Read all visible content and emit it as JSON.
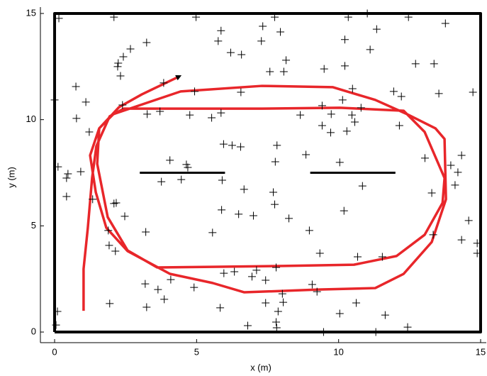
{
  "chart_data": {
    "type": "scatter",
    "xlabel": "x (m)",
    "ylabel": "y (m)",
    "xlim": [
      -0.5,
      15.2
    ],
    "ylim": [
      -0.5,
      15.3
    ],
    "xticks": [
      0,
      5,
      10,
      15
    ],
    "yticks": [
      0,
      5,
      10,
      15
    ],
    "series": [
      {
        "type": "scatter",
        "marker": "+",
        "color": "#000000",
        "x": [
          0.15,
          2.09,
          4.98,
          7.75,
          10.34,
          11.01,
          12.46,
          13.76,
          5.86,
          7.33,
          7.95,
          11.34,
          3.24,
          2.67,
          2.42,
          2.24,
          2.22,
          2.32,
          5.76,
          6.2,
          6.58,
          7.28,
          8.15,
          8.07,
          7.58,
          10.22,
          11.11,
          12.71,
          13.36,
          9.49,
          10.22,
          0.75,
          0.0,
          1.1,
          0.77,
          1.22,
          3.84,
          4.93,
          6.56,
          10.49,
          11.94,
          12.21,
          13.53,
          14.73,
          2.39,
          3.26,
          3.71,
          4.76,
          5.53,
          5.86,
          8.65,
          9.42,
          9.74,
          10.14,
          10.47,
          10.79,
          10.57,
          9.42,
          9.72,
          10.29,
          12.14,
          5.95,
          6.25,
          6.55,
          7.83,
          8.85,
          13.04,
          14.33,
          13.95,
          14.2,
          14.1,
          14.58,
          14.88,
          14.88,
          0.12,
          0.47,
          0.42,
          0.42,
          0.92,
          4.06,
          4.69,
          4.64,
          4.46,
          3.76,
          7.77,
          10.04,
          5.9,
          6.67,
          7.7,
          10.84,
          13.28,
          1.34,
          2.17,
          2.09,
          2.47,
          5.88,
          6.48,
          7.0,
          7.75,
          8.25,
          10.19,
          3.21,
          5.56,
          8.97,
          13.33,
          14.33,
          1.89,
          1.92,
          2.14,
          9.34,
          10.67,
          11.54,
          5.96,
          6.33,
          7.11,
          7.8,
          6.95,
          7.43,
          4.09,
          3.19,
          4.91,
          3.64,
          8.02,
          9.07,
          9.24,
          3.86,
          1.94,
          3.24,
          5.83,
          7.43,
          8.05,
          7.87,
          7.8,
          7.82,
          6.8,
          10.62,
          10.04,
          11.64,
          11.31,
          12.43,
          9.47,
          0.1,
          0.05
        ],
        "y": [
          14.77,
          14.83,
          14.83,
          14.83,
          14.83,
          15.0,
          14.83,
          14.53,
          14.19,
          14.4,
          14.13,
          14.26,
          13.63,
          13.33,
          12.96,
          12.66,
          12.5,
          12.06,
          13.7,
          13.16,
          13.06,
          13.7,
          12.8,
          12.26,
          12.26,
          13.77,
          13.3,
          12.63,
          12.63,
          12.39,
          12.53,
          11.56,
          10.93,
          10.83,
          10.06,
          9.42,
          11.73,
          11.33,
          11.29,
          11.46,
          11.33,
          11.09,
          11.23,
          11.29,
          10.69,
          10.26,
          10.39,
          10.22,
          10.09,
          10.32,
          10.22,
          10.66,
          10.26,
          10.93,
          10.22,
          10.56,
          9.89,
          9.72,
          9.39,
          9.46,
          9.72,
          8.85,
          8.79,
          8.72,
          8.79,
          8.35,
          8.19,
          8.32,
          7.85,
          7.52,
          6.92,
          5.25,
          4.18,
          3.71,
          7.78,
          7.45,
          7.25,
          6.38,
          7.55,
          8.09,
          7.75,
          7.89,
          7.18,
          7.08,
          8.02,
          7.99,
          7.15,
          6.72,
          6.58,
          6.88,
          6.55,
          6.25,
          6.08,
          6.05,
          5.45,
          5.75,
          5.55,
          5.48,
          6.01,
          5.35,
          5.71,
          4.71,
          4.68,
          4.78,
          4.58,
          4.34,
          4.78,
          4.08,
          3.81,
          3.71,
          3.54,
          3.54,
          2.77,
          2.84,
          2.91,
          3.04,
          2.61,
          2.44,
          2.47,
          2.27,
          2.1,
          2.0,
          1.8,
          2.24,
          1.9,
          1.54,
          1.34,
          1.17,
          1.14,
          1.37,
          1.4,
          0.97,
          0.47,
          0.2,
          0.3,
          1.37,
          0.87,
          0.8,
          0.0,
          0.23,
          0.0,
          0.97,
          0.33
        ]
      },
      {
        "type": "line",
        "color": "#e8262a",
        "linewidth": 3.5,
        "x": [
          1.02,
          1.02,
          1.17,
          1.32,
          1.47,
          1.94,
          2.44,
          4.56,
          7.3,
          10.04,
          12.29,
          13.03,
          13.73,
          13.66,
          13.03,
          12.04,
          10.54,
          8.05,
          5.56,
          3.61,
          2.57,
          1.87,
          1.5,
          1.57,
          2.07,
          4.44,
          7.3,
          9.79,
          11.29,
          12.41,
          13.41,
          13.73,
          13.78,
          13.28,
          12.29,
          11.29,
          9.29,
          6.68,
          5.56,
          4.06,
          2.57,
          1.82,
          1.45,
          1.25,
          1.57,
          2.27,
          3.07,
          4.38
        ],
        "y": [
          1.0,
          2.97,
          4.91,
          7.25,
          8.75,
          10.16,
          10.52,
          10.52,
          10.52,
          10.56,
          10.42,
          9.42,
          7.25,
          6.08,
          4.58,
          3.58,
          3.17,
          3.11,
          3.07,
          3.04,
          3.84,
          5.41,
          7.92,
          9.59,
          10.26,
          11.33,
          11.59,
          11.53,
          10.93,
          10.26,
          9.59,
          9.09,
          6.25,
          4.24,
          2.74,
          2.07,
          2.0,
          1.87,
          2.31,
          2.74,
          3.81,
          4.91,
          6.58,
          8.32,
          9.59,
          10.59,
          11.19,
          12.03
        ]
      },
      {
        "type": "line",
        "color": "#000000",
        "linewidth": 4,
        "x": [
          0,
          15,
          15,
          0,
          0
        ],
        "y": [
          0,
          0,
          15,
          15,
          0
        ]
      },
      {
        "type": "line",
        "color": "#000000",
        "linewidth": 3,
        "x": [
          3,
          6
        ],
        "y": [
          7.5,
          7.5
        ]
      },
      {
        "type": "line",
        "color": "#000000",
        "linewidth": 3,
        "x": [
          9,
          12
        ],
        "y": [
          7.5,
          7.5
        ]
      }
    ]
  }
}
